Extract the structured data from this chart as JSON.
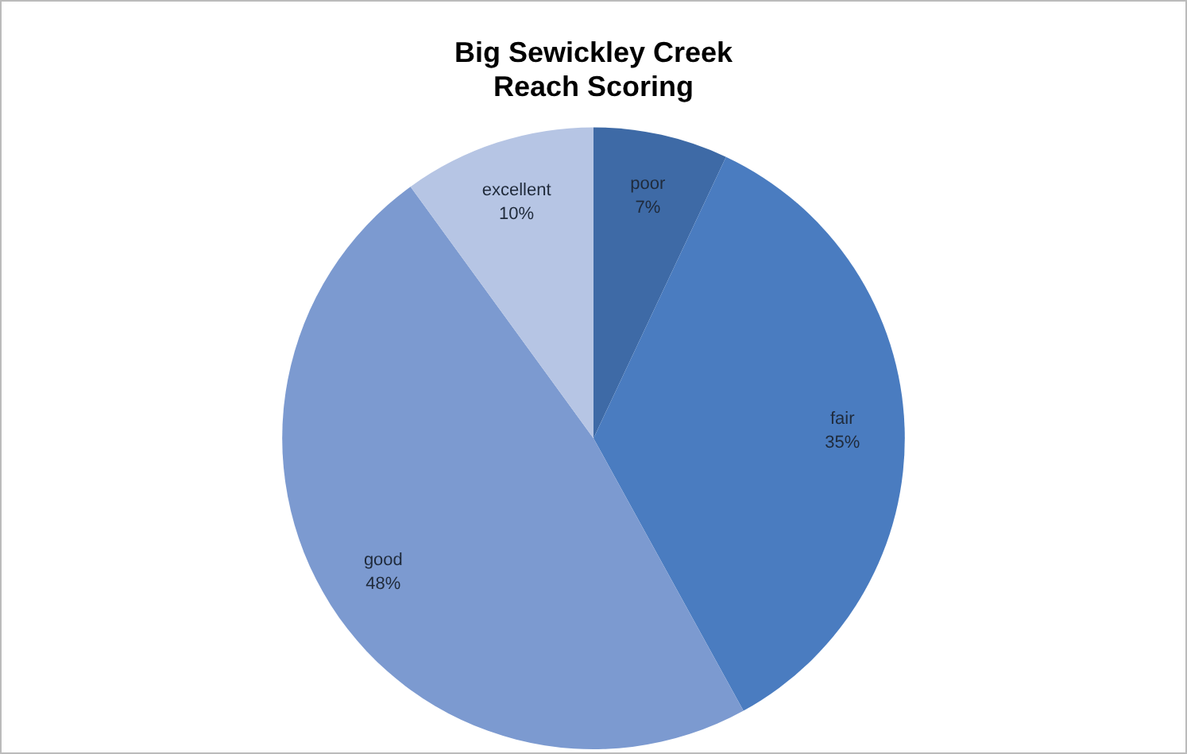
{
  "chart_data": {
    "type": "pie",
    "title": "Big Sewickley Creek\nReach Scoring",
    "categories": [
      "poor",
      "fair",
      "good",
      "excellent"
    ],
    "values": [
      7,
      35,
      48,
      10
    ],
    "value_labels": [
      "7%",
      "35%",
      "48%",
      "10%"
    ],
    "colors": [
      "#3e6aa6",
      "#4a7cc0",
      "#7c9ad0",
      "#b6c5e4"
    ],
    "legend": false
  }
}
